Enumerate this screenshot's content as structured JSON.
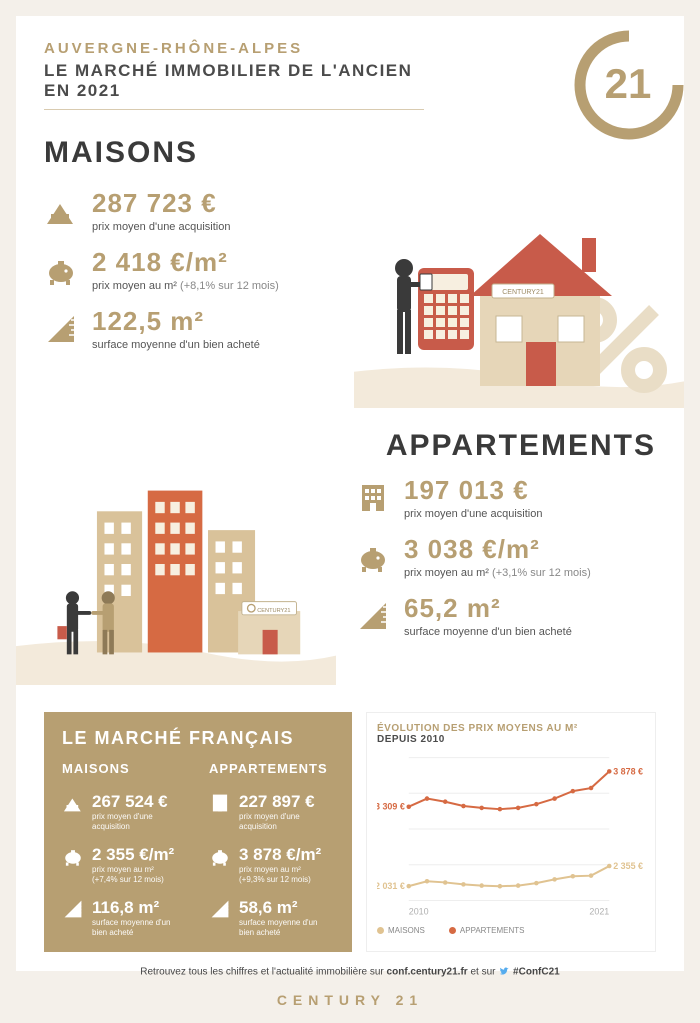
{
  "colors": {
    "brand": "#b79f72",
    "text_dark": "#3a3a3a",
    "text_mid": "#555555",
    "page_bg": "#f4f0ea",
    "wave_bg": "#f3eadb",
    "house_red": "#c85b4a",
    "house_beige": "#e6d6b8",
    "building_orange": "#d66a43",
    "building_tan": "#d9c29a",
    "chart_apts": "#d66a43",
    "chart_houses": "#e0c391"
  },
  "header": {
    "region": "AUVERGNE-RHÔNE-ALPES",
    "title_line1": "LE MARCHÉ IMMOBILIER DE L'ANCIEN",
    "title_line2": "EN 2021",
    "logo_text": "21"
  },
  "maisons": {
    "heading": "MAISONS",
    "stats": [
      {
        "icon": "house",
        "value": "287 723 €",
        "label": "prix moyen d'une acquisition",
        "change": ""
      },
      {
        "icon": "piggy",
        "value": "2 418 €/m²",
        "label": "prix moyen au m²",
        "change": "(+8,1% sur 12 mois)"
      },
      {
        "icon": "ruler",
        "value": "122,5 m²",
        "label": "surface moyenne d'un bien acheté",
        "change": ""
      }
    ],
    "illus_sign": "CENTURY21",
    "illus_percent": "%"
  },
  "appartements": {
    "heading": "APPARTEMENTS",
    "stats": [
      {
        "icon": "building",
        "value": "197 013 €",
        "label": "prix moyen d'une acquisition",
        "change": ""
      },
      {
        "icon": "piggy",
        "value": "3 038 €/m²",
        "label": "prix moyen au m²",
        "change": "(+3,1% sur 12 mois)"
      },
      {
        "icon": "ruler",
        "value": "65,2 m²",
        "label": "surface moyenne d'un bien acheté",
        "change": ""
      }
    ],
    "illus_sign": "CENTURY21"
  },
  "fr_market": {
    "title": "LE MARCHÉ FRANÇAIS",
    "maisons_head": "MAISONS",
    "appartements_head": "APPARTEMENTS",
    "maisons": [
      {
        "icon": "house",
        "value": "267 524 €",
        "label": "prix moyen d'une acquisition",
        "change": ""
      },
      {
        "icon": "piggy",
        "value": "2 355 €/m²",
        "label": "prix moyen au m²",
        "change": "(+7,4% sur 12 mois)"
      },
      {
        "icon": "ruler",
        "value": "116,8 m²",
        "label": "surface moyenne d'un bien acheté",
        "change": ""
      }
    ],
    "appartements": [
      {
        "icon": "building",
        "value": "227 897 €",
        "label": "prix moyen d'une acquisition",
        "change": ""
      },
      {
        "icon": "piggy",
        "value": "3 878 €/m²",
        "label": "prix moyen au m²",
        "change": "(+9,3% sur 12 mois)"
      },
      {
        "icon": "ruler",
        "value": "58,6 m²",
        "label": "surface moyenne d'un bien acheté",
        "change": ""
      }
    ]
  },
  "chart": {
    "title_line1": "ÉVOLUTION DES PRIX MOYENS AU M²",
    "title_line2": "DEPUIS 2010",
    "x_start_label": "2010",
    "x_end_label": "2021",
    "legend_houses": "MAISONS",
    "legend_apts": "APPARTEMENTS",
    "ylim": [
      1800,
      4100
    ],
    "years": [
      2010,
      2011,
      2012,
      2013,
      2014,
      2015,
      2016,
      2017,
      2018,
      2019,
      2020,
      2021
    ],
    "series": {
      "appartements": {
        "color": "#d66a43",
        "start_label": "3 309 €",
        "end_label": "3 878 €",
        "values": [
          3309,
          3440,
          3390,
          3320,
          3290,
          3270,
          3290,
          3350,
          3440,
          3560,
          3610,
          3878
        ]
      },
      "maisons": {
        "color": "#e0c391",
        "start_label": "2 031 €",
        "end_label": "2 355 €",
        "values": [
          2031,
          2110,
          2090,
          2060,
          2040,
          2030,
          2040,
          2080,
          2140,
          2190,
          2200,
          2355
        ]
      }
    },
    "grid_color": "#eeeeee",
    "label_color": "#b0b0b0",
    "label_fontsize": 9
  },
  "footer": {
    "note_pre": "Retrouvez tous les chiffres et l'actualité immobilière sur ",
    "note_link": "conf.century21.fr",
    "note_mid": " et sur ",
    "note_hashtag": "#ConfC21",
    "brand": "CENTURY 21"
  }
}
